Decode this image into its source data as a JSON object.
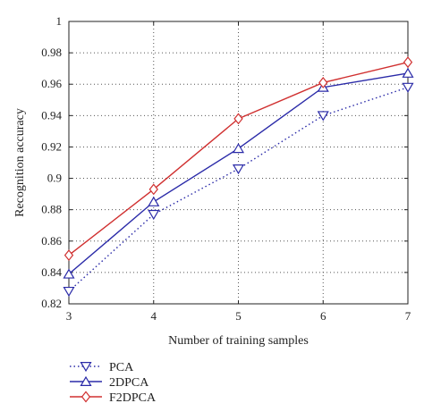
{
  "chart_data": {
    "type": "line",
    "xlabel": "Number of training samples",
    "ylabel": "Recognition accuracy",
    "x": [
      3,
      4,
      5,
      6,
      7
    ],
    "xlim": [
      3,
      7
    ],
    "ylim": [
      0.82,
      1.0
    ],
    "xticks": [
      "3",
      "4",
      "5",
      "6",
      "7"
    ],
    "yticks": [
      "0.82",
      "0.84",
      "0.86",
      "0.88",
      "0.9",
      "0.92",
      "0.94",
      "0.96",
      "0.98",
      "1"
    ],
    "grid": true,
    "legend_position": "bottom-left",
    "series": [
      {
        "name": "PCA",
        "values": [
          0.828,
          0.877,
          0.906,
          0.94,
          0.958
        ],
        "color": "#2a2aa8",
        "line_style": "dotted",
        "marker": "triangle-down"
      },
      {
        "name": "2DPCA",
        "values": [
          0.839,
          0.885,
          0.919,
          0.958,
          0.967
        ],
        "color": "#2a2aa8",
        "line_style": "solid",
        "marker": "triangle-up"
      },
      {
        "name": "F2DPCA",
        "values": [
          0.851,
          0.893,
          0.938,
          0.961,
          0.974
        ],
        "color": "#d03030",
        "line_style": "solid",
        "marker": "diamond"
      }
    ]
  }
}
